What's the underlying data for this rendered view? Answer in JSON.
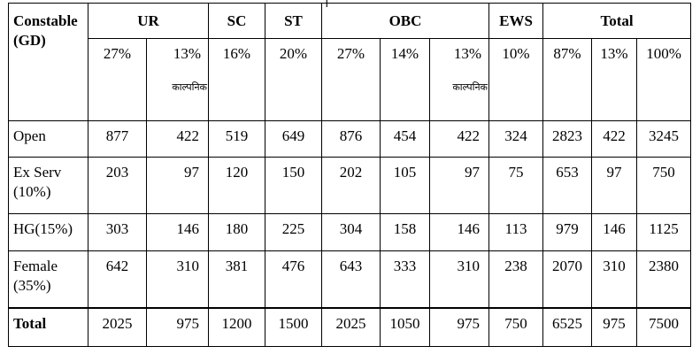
{
  "top_mark": "।",
  "header": {
    "post": "Constable (GD)",
    "groups": [
      "UR",
      "SC",
      "ST",
      "OBC",
      "EWS",
      "Total"
    ]
  },
  "percent_row": [
    "27%",
    "13%",
    "16%",
    "20%",
    "27%",
    "14%",
    "13%",
    "10%",
    "87%",
    "13%",
    "100%"
  ],
  "notional_label": "काल्पनिक",
  "rows": [
    {
      "label": "Open",
      "values": [
        "877",
        "422",
        "519",
        "649",
        "876",
        "454",
        "422",
        "324",
        "2823",
        "422",
        "3245"
      ]
    },
    {
      "label": "Ex Serv (10%)",
      "values": [
        "203",
        "97",
        "120",
        "150",
        "202",
        "105",
        "97",
        "75",
        "653",
        "97",
        "750"
      ]
    },
    {
      "label": "HG(15%)",
      "values": [
        "303",
        "146",
        "180",
        "225",
        "304",
        "158",
        "146",
        "113",
        "979",
        "146",
        "1125"
      ]
    },
    {
      "label": "Female (35%)",
      "values": [
        "642",
        "310",
        "381",
        "476",
        "643",
        "333",
        "310",
        "238",
        "2070",
        "310",
        "2380"
      ]
    },
    {
      "label": "Total",
      "values": [
        "2025",
        "975",
        "1200",
        "1500",
        "2025",
        "1050",
        "975",
        "750",
        "6525",
        "975",
        "7500"
      ]
    }
  ]
}
